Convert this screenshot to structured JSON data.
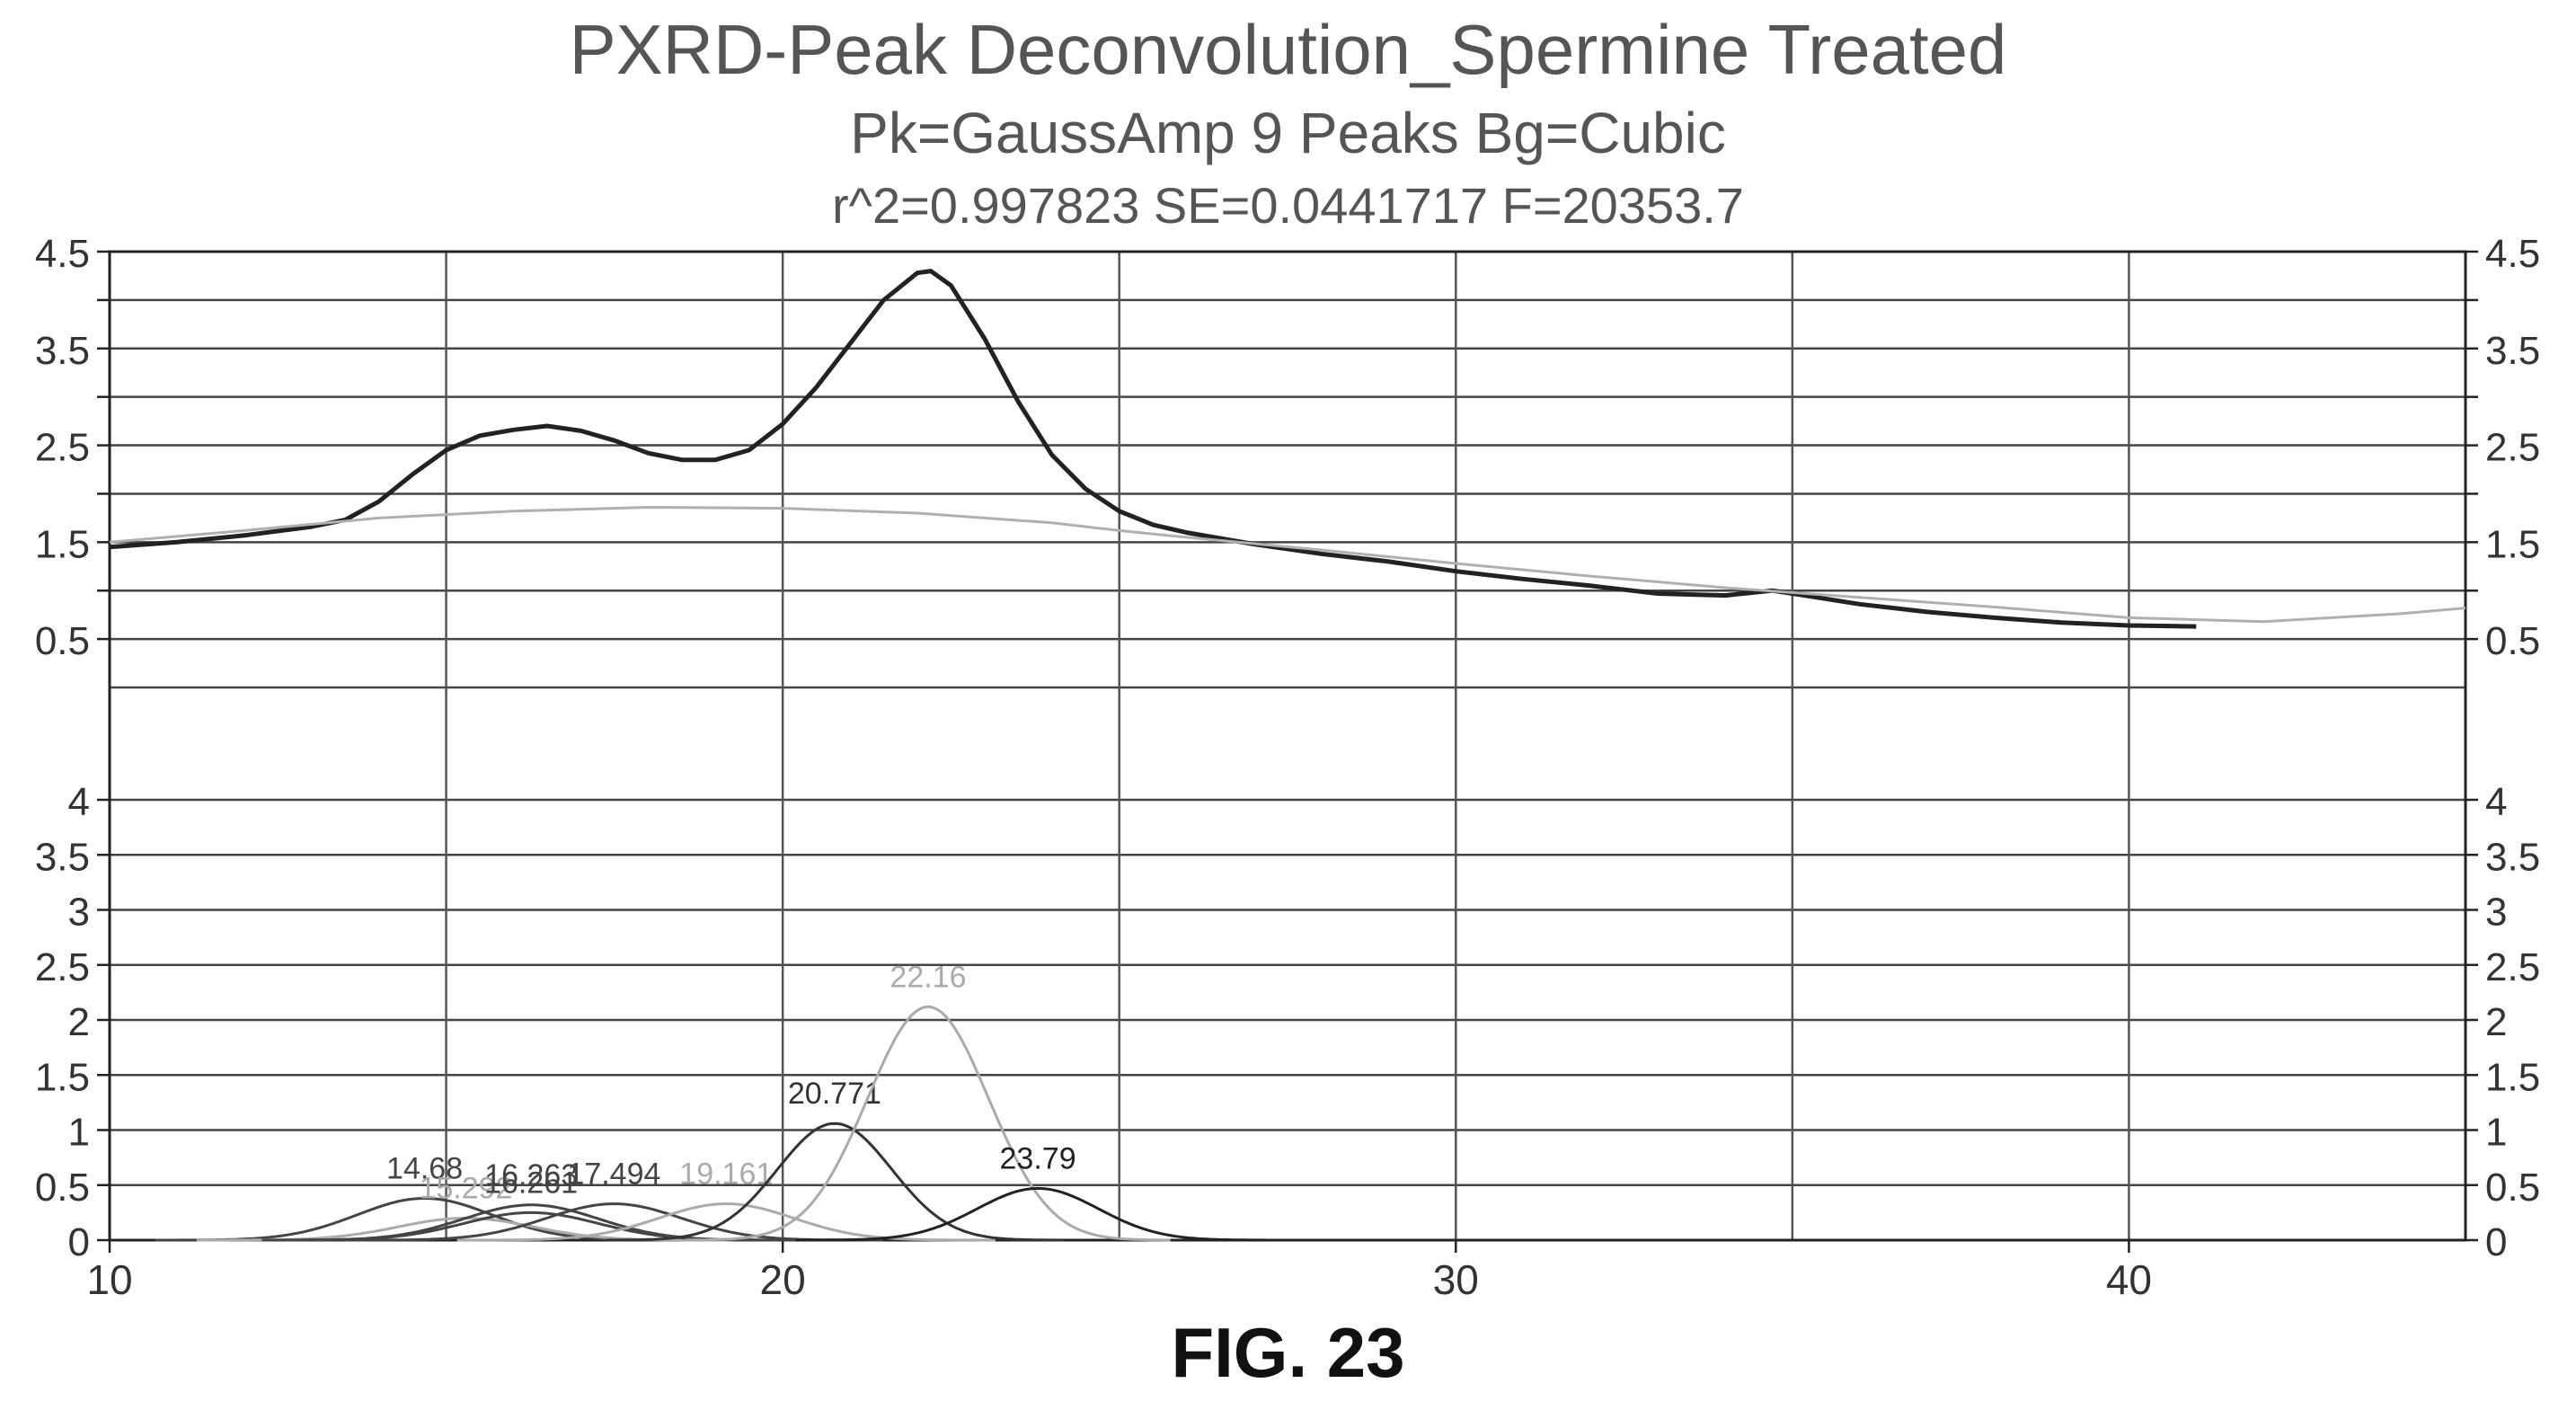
{
  "figure_label": "FIG. 23",
  "chart_data": {
    "type": "line",
    "title": "PXRD-Peak Deconvolution_Spermine Treated",
    "subtitle": "Pk=GaussAmp  9 Peaks  Bg=Cubic",
    "stats": "r^2=0.997823  SE=0.0441717  F=20353.7",
    "x_ticks": [
      "10",
      "20",
      "30",
      "40"
    ],
    "xlim": [
      10,
      45
    ],
    "top_panel": {
      "ylim": [
        0,
        4.5
      ],
      "y_ticks": [
        "4.5",
        "3.5",
        "2.5",
        "1.5",
        "0.5"
      ],
      "y_tick_values": [
        4.5,
        3.5,
        2.5,
        1.5,
        0.5
      ],
      "series": [
        {
          "role": "data+fit",
          "color": "#222222",
          "x": [
            10,
            11,
            12,
            13,
            13.5,
            14,
            14.5,
            15,
            15.5,
            16,
            16.5,
            17,
            17.5,
            18,
            18.5,
            19,
            19.5,
            20,
            20.5,
            21,
            21.5,
            22,
            22.2,
            22.5,
            23,
            23.5,
            24,
            24.5,
            25,
            25.5,
            26,
            27,
            28,
            29,
            30,
            31,
            32,
            33,
            34,
            34.7,
            35,
            36,
            37,
            38,
            39,
            40,
            41
          ],
          "y": [
            1.45,
            1.5,
            1.57,
            1.66,
            1.73,
            1.92,
            2.2,
            2.45,
            2.6,
            2.66,
            2.7,
            2.65,
            2.55,
            2.42,
            2.35,
            2.35,
            2.45,
            2.72,
            3.1,
            3.55,
            4.0,
            4.28,
            4.3,
            4.15,
            3.6,
            2.95,
            2.4,
            2.05,
            1.82,
            1.68,
            1.6,
            1.48,
            1.38,
            1.3,
            1.2,
            1.12,
            1.05,
            0.97,
            0.95,
            1.0,
            0.97,
            0.86,
            0.78,
            0.72,
            0.67,
            0.64,
            0.63
          ]
        },
        {
          "role": "baseline",
          "color": "#b0b0b0",
          "x": [
            10,
            12,
            14,
            16,
            18,
            20,
            22,
            24,
            25,
            26,
            28,
            30,
            32,
            34,
            36,
            38,
            40,
            42,
            44,
            45
          ],
          "y": [
            1.5,
            1.62,
            1.75,
            1.82,
            1.86,
            1.85,
            1.8,
            1.7,
            1.62,
            1.55,
            1.42,
            1.28,
            1.15,
            1.03,
            0.93,
            0.83,
            0.72,
            0.68,
            0.76,
            0.82
          ]
        }
      ]
    },
    "bottom_panel": {
      "ylim": [
        0,
        4
      ],
      "y_ticks": [
        "4",
        "3.5",
        "3",
        "2.5",
        "2",
        "1.5",
        "1",
        "0.5",
        "0"
      ],
      "y_tick_values": [
        4,
        3.5,
        3,
        2.5,
        2,
        1.5,
        1,
        0.5,
        0
      ],
      "peaks": [
        {
          "center": 14.68,
          "label": "14.68",
          "amplitude": 0.38,
          "sigma": 1.0,
          "color": "#444444"
        },
        {
          "center": 15.292,
          "label": "15.292",
          "amplitude": 0.2,
          "sigma": 1.0,
          "color": "#aaaaaa"
        },
        {
          "center": 16.263,
          "label": "16.263",
          "amplitude": 0.32,
          "sigma": 1.0,
          "color": "#444444"
        },
        {
          "center": 16.261,
          "label": "16.261",
          "amplitude": 0.25,
          "sigma": 1.0,
          "color": "#444444"
        },
        {
          "center": 17.494,
          "label": "17.494",
          "amplitude": 0.33,
          "sigma": 1.0,
          "color": "#444444"
        },
        {
          "center": 19.161,
          "label": "19.161",
          "amplitude": 0.33,
          "sigma": 1.0,
          "color": "#aaaaaa"
        },
        {
          "center": 20.771,
          "label": "20.771",
          "amplitude": 1.06,
          "sigma": 0.85,
          "color": "#333333"
        },
        {
          "center": 22.16,
          "label": "22.16",
          "amplitude": 2.12,
          "sigma": 0.9,
          "color": "#aaaaaa"
        },
        {
          "center": 23.79,
          "label": "23.79",
          "amplitude": 0.47,
          "sigma": 0.9,
          "color": "#222222"
        }
      ]
    }
  }
}
